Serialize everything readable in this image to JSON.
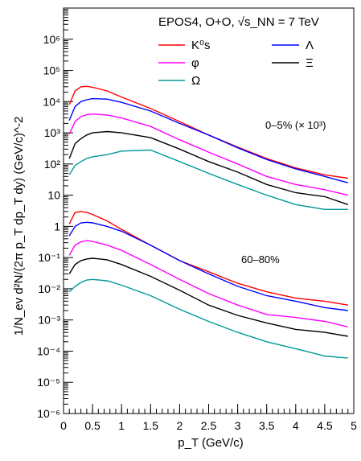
{
  "chart_data": {
    "type": "line",
    "title": "EPOS4, O+O, √s_NN = 7 TeV",
    "xlabel": "p_T (GeV/c)",
    "ylabel": "1/N_ev d²N/(2π p_T dp_T dy) (GeV/c)^-2",
    "xlim": [
      0,
      5
    ],
    "ylim": [
      1e-06,
      10000000.0
    ],
    "y_scale": "log",
    "x_ticks": [
      "0",
      "0.5",
      "1",
      "1.5",
      "2",
      "2.5",
      "3",
      "3.5",
      "4",
      "4.5",
      "5"
    ],
    "y_ticks": [
      "10⁻⁶",
      "10⁻⁵",
      "10⁻⁴",
      "10⁻³",
      "10⁻²",
      "10⁻¹",
      "1",
      "10",
      "10²",
      "10³",
      "10⁴",
      "10⁵",
      "10⁶"
    ],
    "legend_placement": "top-right",
    "annotations": [
      "0–5% (× 10³)",
      "60–80%"
    ],
    "x": [
      0.1,
      0.2,
      0.3,
      0.4,
      0.5,
      0.75,
      1.0,
      1.5,
      2.0,
      2.5,
      3.0,
      3.5,
      4.0,
      4.5,
      4.9
    ],
    "series": [
      {
        "name": "K⁰s",
        "color": "#ff0000",
        "centrality": "0–5%",
        "values": [
          8000,
          22000,
          30000,
          31000,
          29000,
          22000,
          14000,
          6000,
          2300,
          850,
          350,
          150,
          75,
          45,
          35
        ]
      },
      {
        "name": "Λ",
        "color": "#0000ff",
        "centrality": "0–5%",
        "values": [
          2500,
          7000,
          10000,
          11500,
          12500,
          12000,
          9500,
          5000,
          2000,
          850,
          330,
          140,
          70,
          40,
          25
        ]
      },
      {
        "name": "φ",
        "color": "#ff00ff",
        "centrality": "0–5%",
        "values": [
          900,
          2300,
          3300,
          3800,
          4000,
          3700,
          3000,
          1600,
          600,
          240,
          100,
          40,
          22,
          15,
          10
        ]
      },
      {
        "name": "Ξ",
        "color": "#000000",
        "centrality": "0–5%",
        "values": [
          150,
          450,
          650,
          850,
          1000,
          1100,
          1000,
          700,
          300,
          120,
          55,
          22,
          12,
          9,
          5
        ]
      },
      {
        "name": "Ω",
        "color": "#009999",
        "centrality": "0–5%",
        "values": [
          45,
          90,
          120,
          150,
          170,
          200,
          260,
          280,
          120,
          50,
          22,
          10,
          5,
          3.5,
          3.5
        ]
      },
      {
        "name": "K⁰s",
        "color": "#ff0000",
        "centrality": "60–80%",
        "values": [
          1.2,
          2.8,
          3.0,
          2.8,
          2.4,
          1.5,
          0.8,
          0.25,
          0.08,
          0.035,
          0.015,
          0.008,
          0.005,
          0.004,
          0.003
        ]
      },
      {
        "name": "Λ",
        "color": "#0000ff",
        "centrality": "60–80%",
        "values": [
          0.5,
          1.0,
          1.3,
          1.35,
          1.3,
          1.0,
          0.7,
          0.25,
          0.08,
          0.03,
          0.012,
          0.006,
          0.004,
          0.0025,
          0.002
        ]
      },
      {
        "name": "φ",
        "color": "#ff00ff",
        "centrality": "60–80%",
        "values": [
          0.12,
          0.25,
          0.32,
          0.35,
          0.33,
          0.25,
          0.17,
          0.06,
          0.02,
          0.007,
          0.003,
          0.0015,
          0.0012,
          0.0009,
          0.0006
        ]
      },
      {
        "name": "Ξ",
        "color": "#000000",
        "centrality": "60–80%",
        "values": [
          0.03,
          0.06,
          0.08,
          0.09,
          0.095,
          0.085,
          0.06,
          0.025,
          0.009,
          0.003,
          0.0014,
          0.0008,
          0.0005,
          0.0004,
          0.0003
        ]
      },
      {
        "name": "Ω",
        "color": "#009999",
        "centrality": "60–80%",
        "values": [
          0.008,
          0.012,
          0.016,
          0.019,
          0.02,
          0.018,
          0.013,
          0.006,
          0.0022,
          0.0009,
          0.0004,
          0.0002,
          0.00012,
          7e-05,
          6e-05
        ]
      }
    ]
  }
}
